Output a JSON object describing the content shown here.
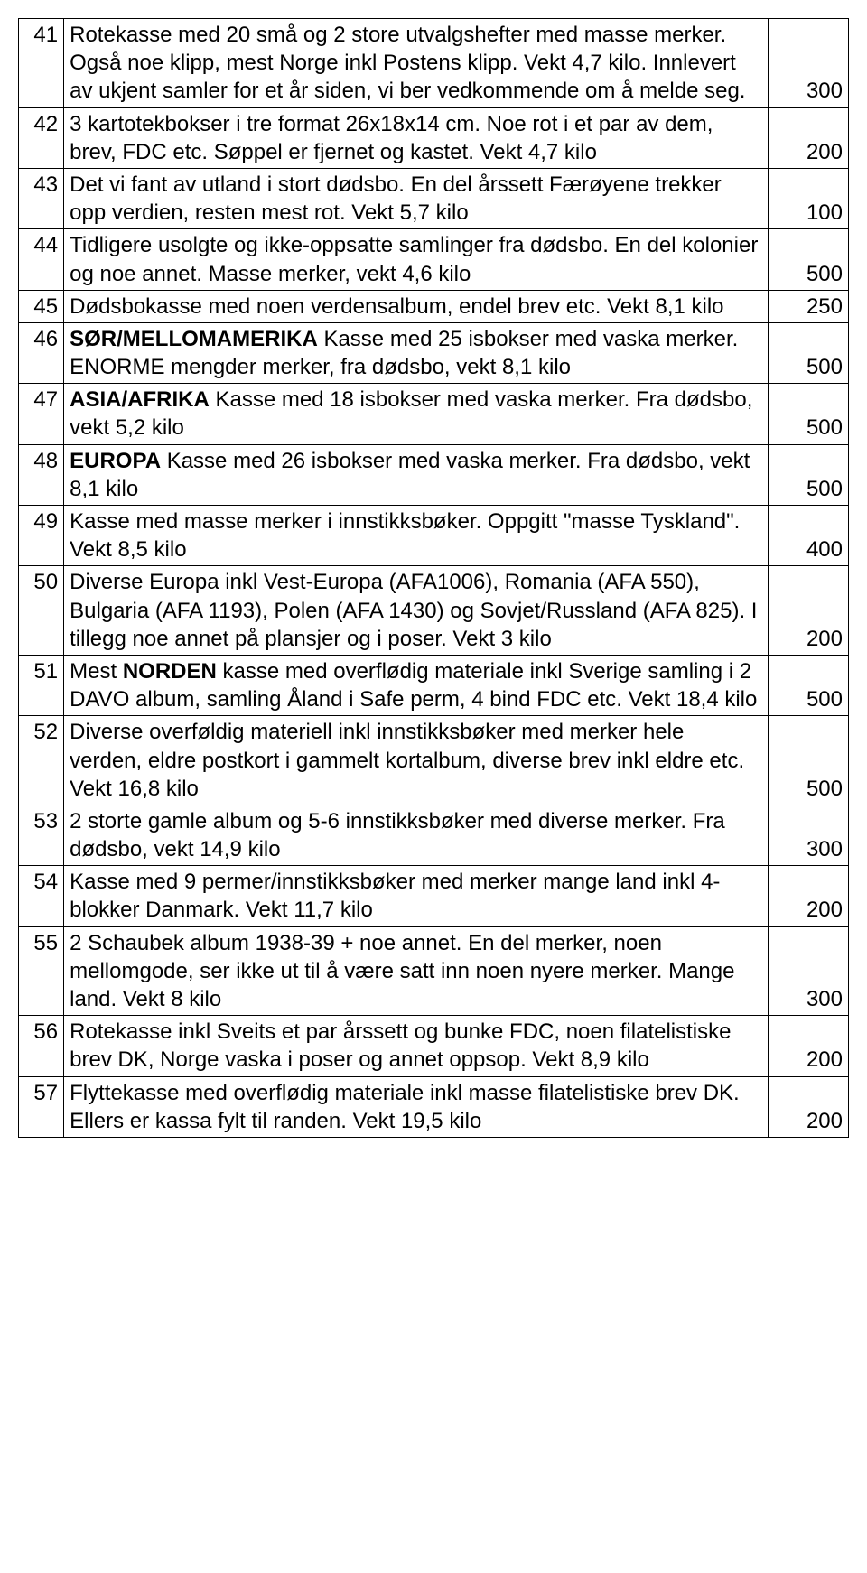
{
  "rows": [
    {
      "num": "41",
      "desc": "Rotekasse med 20 små og 2 store utvalgshefter med masse merker. Også noe klipp, mest Norge inkl Postens klipp. Vekt 4,7 kilo. Innlevert av ukjent samler for et år siden, vi ber vedkommende om å melde seg.",
      "price": "300"
    },
    {
      "num": "42",
      "desc": "3 kartotekbokser i tre format 26x18x14 cm. Noe rot i et par av dem, brev, FDC etc. Søppel er fjernet og kastet. Vekt 4,7 kilo",
      "price": "200"
    },
    {
      "num": "43",
      "desc": "Det vi fant av utland i stort dødsbo. En del årssett Færøyene trekker opp verdien, resten mest rot. Vekt 5,7 kilo",
      "price": "100"
    },
    {
      "num": "44",
      "desc": "Tidligere usolgte og ikke-oppsatte samlinger fra dødsbo. En del kolonier og noe annet. Masse merker, vekt 4,6 kilo",
      "price": "500"
    },
    {
      "num": "45",
      "desc": "Dødsbokasse med noen verdensalbum, endel brev etc. Vekt 8,1 kilo",
      "price": "250"
    },
    {
      "num": "46",
      "desc_html": "<span class='bold'>SØR/MELLOMAMERIKA</span> Kasse med 25 isbokser med vaska merker. ENORME mengder merker, fra dødsbo, vekt 8,1 kilo",
      "price": "500"
    },
    {
      "num": "47",
      "desc_html": "<span class='bold'>ASIA/AFRIKA</span> Kasse med 18 isbokser med vaska merker. Fra dødsbo, vekt 5,2 kilo",
      "price": "500"
    },
    {
      "num": "48",
      "desc_html": "<span class='bold'>EUROPA</span> Kasse med 26 isbokser med vaska merker. Fra dødsbo, vekt 8,1 kilo",
      "price": "500"
    },
    {
      "num": "49",
      "desc": "Kasse med masse merker i innstikksbøker. Oppgitt \"masse Tyskland\". Vekt 8,5 kilo",
      "price": "400"
    },
    {
      "num": "50",
      "desc": "Diverse Europa inkl Vest-Europa (AFA1006), Romania (AFA 550), Bulgaria (AFA 1193), Polen (AFA 1430) og Sovjet/Russland (AFA 825). I tillegg noe annet på plansjer og i poser. Vekt 3 kilo",
      "price": "200"
    },
    {
      "num": "51",
      "desc_html": "Mest <span class='bold'>NORDEN</span> kasse med overflødig materiale inkl Sverige samling i 2 DAVO album, samling Åland i Safe perm, 4 bind FDC etc. Vekt 18,4 kilo",
      "price": "500"
    },
    {
      "num": "52",
      "desc": "Diverse overføldig materiell inkl innstikksbøker med merker hele verden, eldre postkort i gammelt kortalbum, diverse brev inkl eldre etc. Vekt 16,8 kilo",
      "price": "500"
    },
    {
      "num": "53",
      "desc": "2 storte gamle album og 5-6 innstikksbøker med diverse merker. Fra dødsbo, vekt 14,9 kilo",
      "price": "300"
    },
    {
      "num": "54",
      "desc": "Kasse med 9 permer/innstikksbøker med merker mange land inkl 4-blokker Danmark. Vekt 11,7 kilo",
      "price": "200"
    },
    {
      "num": "55",
      "desc": "2 Schaubek album 1938-39 + noe annet. En del merker, noen mellomgode, ser ikke ut til å være satt inn noen nyere merker. Mange land. Vekt 8 kilo",
      "price": "300"
    },
    {
      "num": "56",
      "desc": "Rotekasse inkl Sveits et par årssett og bunke FDC, noen filatelistiske brev DK, Norge vaska i poser og annet oppsop. Vekt 8,9 kilo",
      "price": "200"
    },
    {
      "num": "57",
      "desc": "Flyttekasse med overflødig materiale inkl masse filatelistiske brev DK. Ellers er kassa fylt til randen. Vekt 19,5 kilo",
      "price": "200"
    }
  ]
}
